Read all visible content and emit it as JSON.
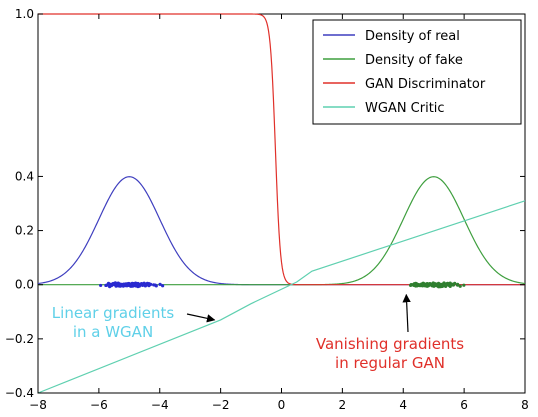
{
  "chart_data": {
    "type": "line",
    "title": "",
    "xlabel": "",
    "ylabel": "",
    "xlim": [
      -8,
      8
    ],
    "ylim": [
      -0.4,
      1.0
    ],
    "xticks": [
      -8,
      -6,
      -4,
      -2,
      0,
      2,
      4,
      6,
      8
    ],
    "xtick_labels": [
      "−8",
      "−6",
      "−4",
      "−2",
      "0",
      "2",
      "4",
      "6",
      "8"
    ],
    "yticks": [
      -0.4,
      -0.2,
      0.0,
      0.2,
      0.4,
      1.0
    ],
    "ytick_labels": [
      "−0.4",
      "−0.2",
      "0.0",
      "0.2",
      "0.4",
      "1.0"
    ],
    "grid": false,
    "legend_position": "top-right",
    "series": [
      {
        "name": "Density of real",
        "color": "#3f3fbf",
        "kind": "gaussian",
        "mean": -5,
        "std": 1,
        "x_range": [
          -8,
          8
        ],
        "points": [
          [
            -8,
            0.0044
          ],
          [
            -7,
            0.054
          ],
          [
            -6,
            0.242
          ],
          [
            -5,
            0.399
          ],
          [
            -4,
            0.242
          ],
          [
            -3,
            0.054
          ],
          [
            -2,
            0.0044
          ]
        ]
      },
      {
        "name": "Density of fake",
        "color": "#3f9f3f",
        "kind": "gaussian",
        "mean": 5,
        "std": 1,
        "x_range": [
          -8,
          8
        ],
        "points": [
          [
            2,
            0.0044
          ],
          [
            3,
            0.054
          ],
          [
            4,
            0.242
          ],
          [
            5,
            0.399
          ],
          [
            6,
            0.242
          ],
          [
            7,
            0.054
          ],
          [
            8,
            0.0044
          ]
        ]
      },
      {
        "name": "GAN Discriminator",
        "color": "#e0302a",
        "kind": "sigmoid",
        "center": -0.2,
        "steepness": 12,
        "x_range": [
          -8,
          8
        ],
        "points": [
          [
            -0.6,
            0.99
          ],
          [
            -0.4,
            0.92
          ],
          [
            -0.2,
            0.5
          ],
          [
            0.0,
            0.08
          ],
          [
            0.2,
            0.01
          ]
        ]
      },
      {
        "name": "WGAN Critic",
        "color": "#5fd0b0",
        "kind": "polyline",
        "points": [
          [
            -8,
            -0.4
          ],
          [
            -2,
            -0.13
          ],
          [
            -1,
            -0.07
          ],
          [
            0.5,
            0.01
          ],
          [
            1,
            0.05
          ],
          [
            8,
            0.31
          ]
        ]
      }
    ],
    "scatter": [
      {
        "color": "#2a2ad0",
        "center_x": -5,
        "x_range": [
          -6.8,
          -2.2
        ],
        "y_jitter": 0.012,
        "count": 140
      },
      {
        "color": "#2f7f2f",
        "center_x": 5,
        "x_range": [
          2.8,
          7.0
        ],
        "y_jitter": 0.012,
        "count": 140
      }
    ],
    "annotations": [
      {
        "id": "linear",
        "lines": [
          "Linear gradients",
          "in a WGAN"
        ],
        "color": "#5fd0e8",
        "arrow_to": [
          -2.2,
          -0.13
        ]
      },
      {
        "id": "vanishing",
        "lines": [
          "Vanishing gradients",
          "in regular GAN"
        ],
        "color": "#e0302a",
        "arrow_to": [
          4.1,
          0.0
        ]
      }
    ]
  }
}
